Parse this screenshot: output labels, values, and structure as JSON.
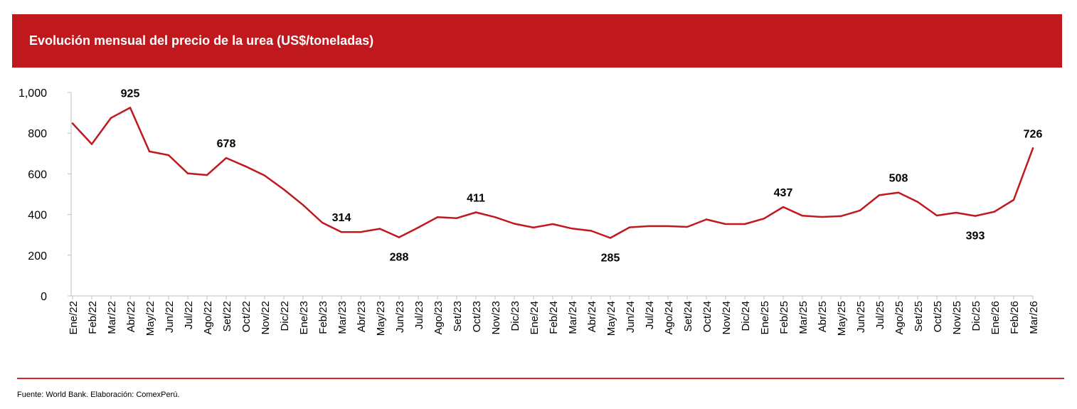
{
  "header": {
    "title": "Evolución mensual del precio de la urea (US$/toneladas)"
  },
  "footer": {
    "source": "Fuente: World Bank. Elaboración: ComexPerú."
  },
  "colors": {
    "accent": "#c0191d",
    "line": "#c0191d",
    "axis": "#bfbfbf",
    "rule": "#d6262b"
  },
  "chart_data": {
    "type": "line",
    "title": "Evolución mensual del precio de la urea (US$/toneladas)",
    "xlabel": "",
    "ylabel": "",
    "ylim": [
      0,
      1000
    ],
    "yticks": [
      0,
      200,
      400,
      600,
      800,
      1000
    ],
    "ytick_labels": [
      "0",
      "200",
      "400",
      "600",
      "800",
      "1,000"
    ],
    "grid": false,
    "legend": "none",
    "categories": [
      "Ene/22",
      "Feb/22",
      "Mar/22",
      "Abr/22",
      "May/22",
      "Jun/22",
      "Jul/22",
      "Ago/22",
      "Set/22",
      "Oct/22",
      "Nov/22",
      "Dic/22",
      "Ene/23",
      "Feb/23",
      "Mar/23",
      "Abr/23",
      "May/23",
      "Jun/23",
      "Jul/23",
      "Ago/23",
      "Set/23",
      "Oct/23",
      "Nov/23",
      "Dic/23",
      "Ene/24",
      "Feb/24",
      "Mar/24",
      "Abr/24",
      "May/24",
      "Jun/24",
      "Jul/24",
      "Ago/24",
      "Set/24",
      "Oct/24",
      "Nov/24",
      "Dic/24",
      "Ene/25",
      "Feb/25",
      "Mar/25",
      "Abr/25",
      "May/25",
      "Jun/25",
      "Jul/25",
      "Ago/25",
      "Set/25",
      "Oct/25",
      "Nov/25",
      "Dic/25",
      "Ene/26",
      "Feb/26",
      "Mar/26"
    ],
    "series": [
      {
        "name": "Precio de la urea",
        "values": [
          848,
          746,
          875,
          925,
          710,
          692,
          602,
          594,
          678,
          637,
          592,
          523,
          447,
          360,
          314,
          314,
          330,
          288,
          336,
          387,
          382,
          411,
          387,
          355,
          336,
          353,
          331,
          320,
          285,
          337,
          343,
          343,
          339,
          376,
          353,
          353,
          380,
          437,
          394,
          388,
          392,
          420,
          495,
          508,
          462,
          395,
          409,
          393,
          414,
          472,
          726
        ]
      }
    ],
    "annotations": [
      {
        "category": "Abr/22",
        "label": "925",
        "position": "above"
      },
      {
        "category": "Set/22",
        "label": "678",
        "position": "above"
      },
      {
        "category": "Mar/23",
        "label": "314",
        "position": "above"
      },
      {
        "category": "Jun/23",
        "label": "288",
        "position": "below"
      },
      {
        "category": "Oct/23",
        "label": "411",
        "position": "above"
      },
      {
        "category": "May/24",
        "label": "285",
        "position": "below"
      },
      {
        "category": "Feb/25",
        "label": "437",
        "position": "above"
      },
      {
        "category": "Ago/25",
        "label": "508",
        "position": "above"
      },
      {
        "category": "Dic/25",
        "label": "393",
        "position": "below"
      },
      {
        "category": "Mar/26",
        "label": "726",
        "position": "above"
      }
    ]
  }
}
